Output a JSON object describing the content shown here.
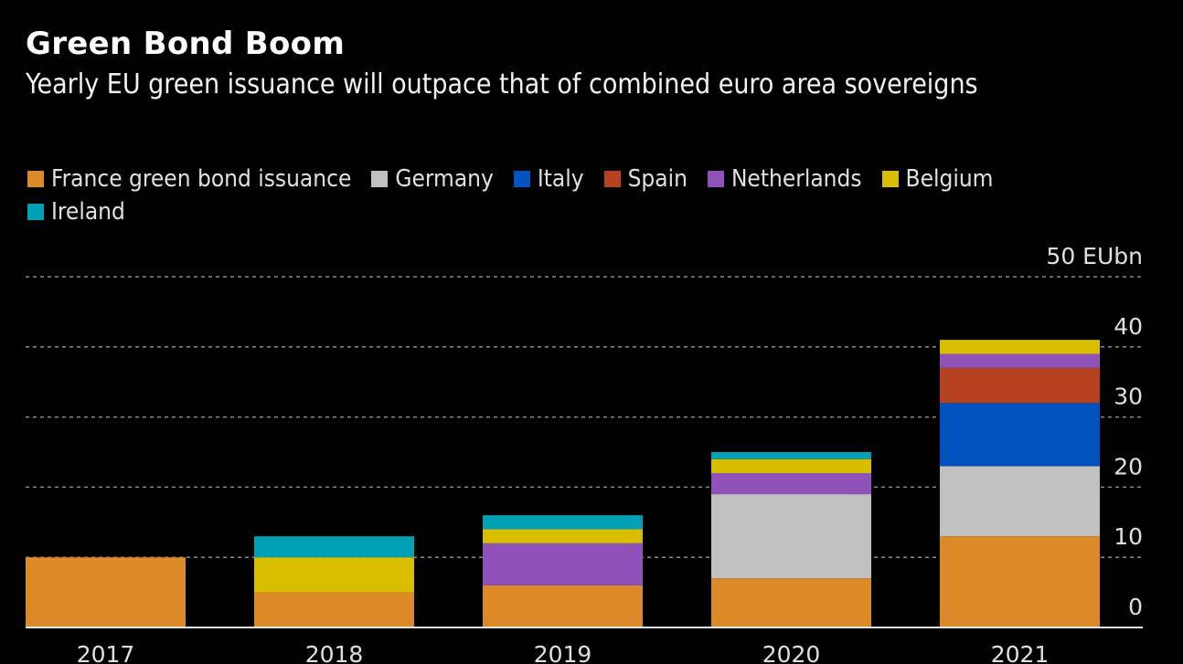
{
  "title": "Green Bond Boom",
  "subtitle": "Yearly EU green issuance will outpace that of combined euro area sovereigns",
  "legend": [
    {
      "label": "France green bond issuance",
      "color": "#DB8A27"
    },
    {
      "label": "Germany",
      "color": "#C0C0C0"
    },
    {
      "label": "Italy",
      "color": "#0052BF"
    },
    {
      "label": "Spain",
      "color": "#B5411E"
    },
    {
      "label": "Netherlands",
      "color": "#8E52B8"
    },
    {
      "label": "Belgium",
      "color": "#D9BE00"
    },
    {
      "label": "Ireland",
      "color": "#00A0B5"
    }
  ],
  "chart_data": {
    "type": "bar",
    "stacked": true,
    "title": "Green Bond Boom",
    "subtitle": "Yearly EU green issuance will outpace that of combined euro area sovereigns",
    "xlabel": "",
    "ylabel": "EUbn",
    "unit_label": "EUbn",
    "ylim": [
      0,
      50
    ],
    "yticks": [
      0,
      10,
      20,
      30,
      40,
      50
    ],
    "ytick_labels": [
      "0",
      "10",
      "20",
      "30",
      "40",
      "50 EUbn"
    ],
    "y_axis_side": "right",
    "grid": true,
    "legend_position": "top",
    "categories": [
      "2017",
      "2018",
      "2019",
      "2020",
      "2021"
    ],
    "series": [
      {
        "name": "France green bond issuance",
        "color": "#DB8A27",
        "values": [
          10,
          5,
          6,
          7,
          13
        ]
      },
      {
        "name": "Germany",
        "color": "#C0C0C0",
        "values": [
          0,
          0,
          0,
          12,
          10
        ]
      },
      {
        "name": "Italy",
        "color": "#0052BF",
        "values": [
          0,
          0,
          0,
          0,
          9
        ]
      },
      {
        "name": "Spain",
        "color": "#B5411E",
        "values": [
          0,
          0,
          0,
          0,
          5
        ]
      },
      {
        "name": "Netherlands",
        "color": "#8E52B8",
        "values": [
          0,
          0,
          6,
          3,
          2
        ]
      },
      {
        "name": "Belgium",
        "color": "#D9BE00",
        "values": [
          0,
          5,
          2,
          2,
          2
        ]
      },
      {
        "name": "Ireland",
        "color": "#00A0B5",
        "values": [
          0,
          3,
          2,
          1,
          0
        ]
      }
    ]
  }
}
